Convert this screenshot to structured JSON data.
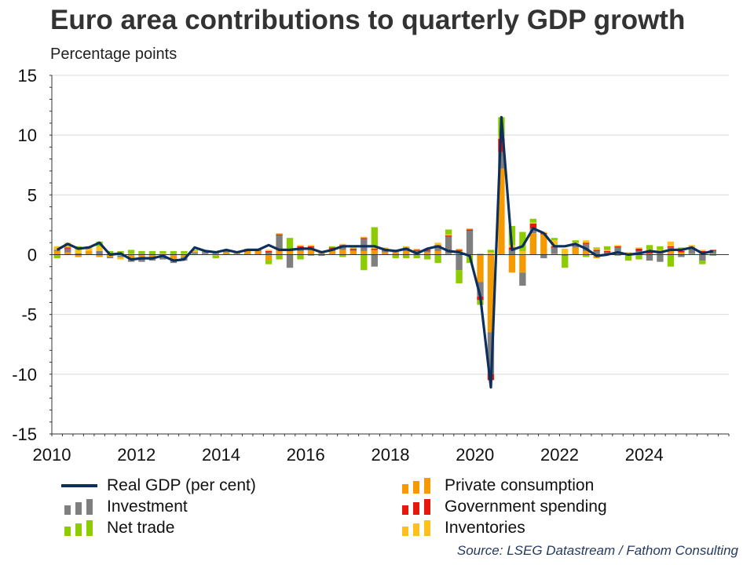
{
  "chart_data": {
    "type": "bar",
    "title": "Euro area contributions to quarterly GDP growth",
    "subtitle": "Percentage points",
    "source": "Source: LSEG Datastream / Fathom Consulting",
    "ylim": [
      -15,
      15
    ],
    "yticks": [
      "15",
      "10",
      "5",
      "0",
      "-5",
      "-10",
      "-15"
    ],
    "ytick_values": [
      15,
      10,
      5,
      0,
      -5,
      -10,
      -15
    ],
    "xlim": [
      2010,
      2026
    ],
    "xticks": [
      "2010",
      "2012",
      "2014",
      "2016",
      "2018",
      "2020",
      "2022",
      "2024"
    ],
    "xtick_values": [
      2010,
      2012,
      2014,
      2016,
      2018,
      2020,
      2022,
      2024
    ],
    "grid": true,
    "legend_position": "bottom",
    "quarters": [
      "2010Q1",
      "2010Q2",
      "2010Q3",
      "2010Q4",
      "2011Q1",
      "2011Q2",
      "2011Q3",
      "2011Q4",
      "2012Q1",
      "2012Q2",
      "2012Q3",
      "2012Q4",
      "2013Q1",
      "2013Q2",
      "2013Q3",
      "2013Q4",
      "2014Q1",
      "2014Q2",
      "2014Q3",
      "2014Q4",
      "2015Q1",
      "2015Q2",
      "2015Q3",
      "2015Q4",
      "2016Q1",
      "2016Q2",
      "2016Q3",
      "2016Q4",
      "2017Q1",
      "2017Q2",
      "2017Q3",
      "2017Q4",
      "2018Q1",
      "2018Q2",
      "2018Q3",
      "2018Q4",
      "2019Q1",
      "2019Q2",
      "2019Q3",
      "2019Q4",
      "2020Q1",
      "2020Q2",
      "2020Q3",
      "2020Q4",
      "2021Q1",
      "2021Q2",
      "2021Q3",
      "2021Q4",
      "2022Q1",
      "2022Q2",
      "2022Q3",
      "2022Q4",
      "2023Q1",
      "2023Q2",
      "2023Q3",
      "2023Q4",
      "2024Q1",
      "2024Q2",
      "2024Q3",
      "2024Q4",
      "2025Q1",
      "2025Q2",
      "2025Q3"
    ],
    "series": [
      {
        "name": "Real GDP (per cent)",
        "kind": "line",
        "color": "#0d2f5c",
        "values": [
          0.4,
          0.9,
          0.5,
          0.6,
          1.0,
          0.0,
          0.1,
          -0.4,
          -0.3,
          -0.3,
          -0.1,
          -0.5,
          -0.4,
          0.6,
          0.3,
          0.2,
          0.4,
          0.2,
          0.4,
          0.4,
          0.8,
          0.4,
          0.4,
          0.5,
          0.5,
          0.2,
          0.4,
          0.7,
          0.7,
          0.7,
          0.7,
          0.4,
          0.3,
          0.5,
          0.1,
          0.5,
          0.7,
          0.3,
          0.2,
          -0.1,
          -3.5,
          -11.1,
          11.5,
          0.4,
          0.7,
          2.2,
          1.8,
          0.7,
          0.7,
          0.9,
          0.5,
          -0.1,
          0.0,
          0.2,
          0.0,
          0.1,
          0.3,
          0.2,
          0.4,
          0.4,
          0.6,
          0.1,
          0.3
        ]
      },
      {
        "name": "Private consumption",
        "kind": "bar",
        "color": "#f59a00",
        "values": [
          0.3,
          0.2,
          -0.2,
          0.3,
          -0.2,
          -0.2,
          -0.1,
          -0.4,
          -0.3,
          -0.3,
          -0.2,
          -0.4,
          -0.2,
          0.1,
          0.1,
          0.1,
          0.2,
          0.2,
          0.3,
          0.3,
          -0.5,
          0.4,
          0.3,
          0.3,
          0.4,
          0.2,
          0.3,
          0.4,
          0.3,
          0.3,
          0.4,
          0.2,
          0.3,
          0.3,
          0.2,
          0.2,
          0.3,
          0.1,
          0.3,
          -0.1,
          -2.3,
          -6.5,
          7.2,
          -1.5,
          -1.5,
          1.8,
          1.7,
          0.1,
          0.0,
          0.6,
          0.3,
          -0.3,
          0.1,
          0.0,
          0.1,
          0.2,
          0.1,
          0.1,
          0.3,
          0.2,
          0.1,
          0.2,
          0.1
        ]
      },
      {
        "name": "Investment",
        "kind": "bar",
        "color": "#7f7f7f",
        "values": [
          0.1,
          0.3,
          0.1,
          0.0,
          0.3,
          -0.1,
          -0.1,
          -0.2,
          -0.3,
          -0.2,
          -0.2,
          -0.3,
          -0.3,
          0.1,
          0.1,
          0.1,
          0.1,
          0.0,
          0.0,
          0.1,
          0.2,
          1.2,
          -1.1,
          0.3,
          0.2,
          -0.1,
          0.2,
          0.3,
          0.1,
          1.0,
          -1.0,
          0.2,
          0.0,
          0.3,
          0.1,
          0.1,
          0.4,
          1.4,
          -1.3,
          2.0,
          -1.2,
          -3.5,
          1.4,
          0.4,
          -1.1,
          0.4,
          -0.3,
          0.5,
          -0.1,
          0.3,
          0.6,
          0.3,
          0.1,
          0.6,
          0.0,
          0.1,
          -0.5,
          -0.6,
          0.3,
          -0.2,
          0.4,
          -0.5,
          0.2
        ]
      },
      {
        "name": "Government spending",
        "kind": "bar",
        "color": "#e8170c",
        "values": [
          0.0,
          0.1,
          0.0,
          0.0,
          0.0,
          0.0,
          0.0,
          0.0,
          0.0,
          0.0,
          0.0,
          0.0,
          0.0,
          0.0,
          0.0,
          0.0,
          0.0,
          0.0,
          0.0,
          0.0,
          0.1,
          0.1,
          0.1,
          0.1,
          0.1,
          0.0,
          0.1,
          0.1,
          0.1,
          0.1,
          0.1,
          0.1,
          0.0,
          0.0,
          0.1,
          0.1,
          0.1,
          0.1,
          0.1,
          0.1,
          -0.3,
          -0.5,
          1.1,
          0.2,
          0.0,
          0.4,
          0.1,
          0.1,
          0.0,
          0.0,
          0.1,
          0.1,
          0.1,
          0.1,
          0.0,
          0.2,
          0.2,
          0.1,
          0.1,
          0.1,
          0.1,
          0.1,
          0.1
        ]
      },
      {
        "name": "Inventories",
        "kind": "bar",
        "color": "#ffc01f",
        "values": [
          0.3,
          0.4,
          0.3,
          0.3,
          0.4,
          0.1,
          -0.2,
          0.1,
          0.0,
          0.0,
          0.1,
          0.0,
          0.1,
          0.1,
          0.0,
          -0.1,
          0.0,
          0.1,
          0.1,
          0.0,
          0.1,
          0.1,
          0.1,
          0.1,
          0.1,
          0.1,
          0.0,
          0.1,
          0.1,
          0.1,
          0.1,
          0.1,
          0.1,
          0.1,
          0.1,
          0.1,
          0.2,
          0.1,
          0.1,
          0.1,
          0.1,
          0.2,
          0.2,
          0.2,
          0.3,
          0.1,
          0.1,
          0.5,
          0.5,
          0.1,
          0.2,
          0.1,
          0.1,
          0.1,
          0.1,
          0.1,
          0.1,
          0.2,
          0.4,
          0.2,
          0.2,
          0.1,
          0.0
        ]
      },
      {
        "name": "Net trade",
        "kind": "bar",
        "color": "#8dcc00",
        "values": [
          -0.3,
          0.0,
          0.3,
          0.1,
          0.4,
          0.2,
          0.3,
          0.3,
          0.3,
          0.3,
          0.2,
          0.3,
          0.2,
          0.1,
          0.1,
          -0.2,
          0.1,
          0.0,
          0.1,
          0.0,
          -0.3,
          -0.4,
          0.9,
          -0.4,
          -0.1,
          0.0,
          0.1,
          -0.2,
          0.1,
          -1.3,
          1.7,
          0.0,
          -0.3,
          -0.3,
          -0.3,
          -0.4,
          -0.7,
          0.4,
          -1.1,
          -0.6,
          -0.4,
          0.2,
          1.6,
          1.6,
          1.6,
          0.3,
          0.0,
          0.2,
          -1.0,
          0.2,
          -0.2,
          0.1,
          0.3,
          -0.1,
          -0.5,
          -0.4,
          0.4,
          0.3,
          -1.0,
          0.1,
          0.0,
          -0.3,
          -0.1
        ]
      }
    ],
    "legend": [
      {
        "label": "Real GDP (per cent)",
        "color": "#0d2f5c",
        "style": "line"
      },
      {
        "label": "Investment",
        "color": "#7f7f7f",
        "style": "bars"
      },
      {
        "label": "Net trade",
        "color": "#8dcc00",
        "style": "bars"
      },
      {
        "label": "Private consumption",
        "color": "#f59a00",
        "style": "bars"
      },
      {
        "label": "Government spending",
        "color": "#e8170c",
        "style": "bars"
      },
      {
        "label": "Inventories",
        "color": "#ffc01f",
        "style": "bars"
      }
    ]
  }
}
